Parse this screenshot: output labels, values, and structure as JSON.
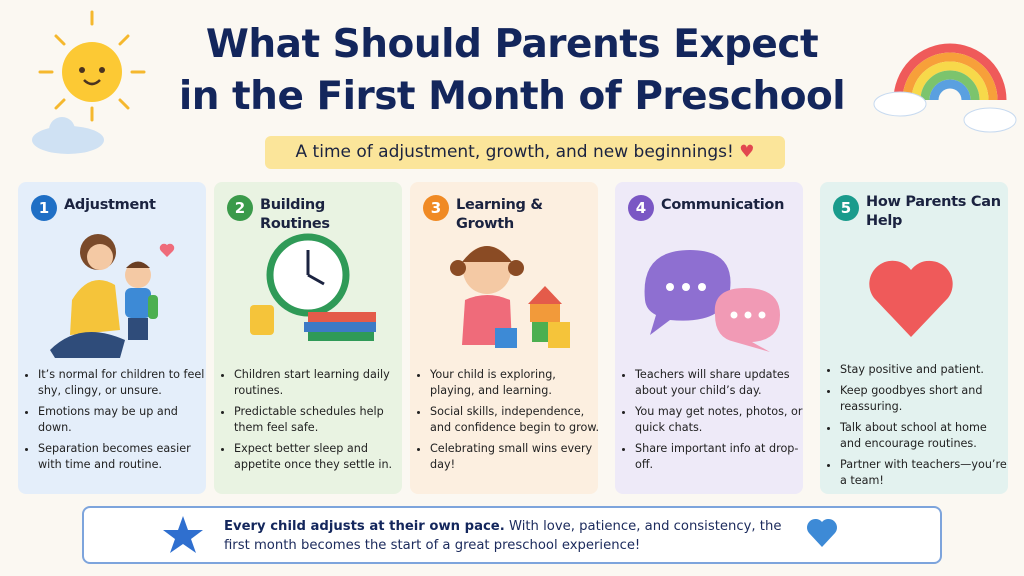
{
  "header": {
    "title_line1": "What Should Parents Expect",
    "title_line2": "in the First Month of Preschool",
    "subtitle": "A time of adjustment, growth, and new beginnings!"
  },
  "cards": [
    {
      "number": "1",
      "title": "Adjustment",
      "bullets": [
        "It’s normal for children to feel shy, clingy, or unsure.",
        "Emotions may be up and down.",
        "Separation becomes easier with time and routine."
      ]
    },
    {
      "number": "2",
      "title": "Building Routines",
      "bullets": [
        "Children start learning daily routines.",
        "Predictable schedules help them feel safe.",
        "Expect better sleep and appetite once they settle in."
      ]
    },
    {
      "number": "3",
      "title": "Learning & Growth",
      "bullets": [
        "Your child is exploring, playing, and learning.",
        "Social skills, independence, and confidence begin to grow.",
        "Celebrating small wins every day!"
      ]
    },
    {
      "number": "4",
      "title": "Communication",
      "bullets": [
        "Teachers will share updates about your child’s day.",
        "You may get notes, photos, or quick chats.",
        "Share important info at drop-off."
      ]
    },
    {
      "number": "5",
      "title": "How Parents Can Help",
      "bullets": [
        "Stay positive and patient.",
        "Keep goodbyes short and reassuring.",
        "Talk about school at home and encourage routines.",
        "Partner with teachers—you’re a team!"
      ]
    }
  ],
  "footer": {
    "bold": "Every child adjusts at their own pace.",
    "text": "With love, patience, and consistency, the first month becomes the start of a great preschool experience!"
  }
}
